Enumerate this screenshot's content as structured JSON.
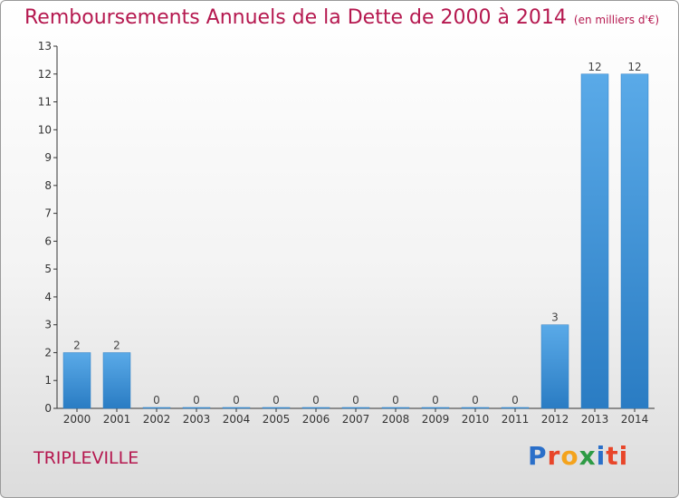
{
  "title": "Remboursements Annuels de la Dette de 2000 à 2014",
  "unit": "(en milliers d'€)",
  "commune": "TRIPLEVILLE",
  "logo": [
    "P",
    "r",
    "o",
    "x",
    "i",
    "ti"
  ],
  "chart_data": {
    "type": "bar",
    "title": "Remboursements Annuels de la Dette de 2000 à 2014",
    "subtitle": "(en milliers d'€)",
    "categories": [
      "2000",
      "2001",
      "2002",
      "2003",
      "2004",
      "2005",
      "2006",
      "2007",
      "2008",
      "2009",
      "2010",
      "2011",
      "2012",
      "2013",
      "2014"
    ],
    "values": [
      2,
      2,
      0,
      0,
      0,
      0,
      0,
      0,
      0,
      0,
      0,
      0,
      3,
      12,
      12
    ],
    "data_labels": [
      "2",
      "2",
      "0",
      "0",
      "0",
      "0",
      "0",
      "0",
      "0",
      "0",
      "0",
      "0",
      "3",
      "12",
      "12"
    ],
    "yticks": [
      "0",
      "1",
      "2",
      "3",
      "4",
      "5",
      "6",
      "7",
      "8",
      "9",
      "10",
      "11",
      "12",
      "13"
    ],
    "ylim": [
      0,
      13
    ],
    "xlabel": "",
    "ylabel": "",
    "grid": false,
    "bar_color": "#3a8fd6"
  }
}
